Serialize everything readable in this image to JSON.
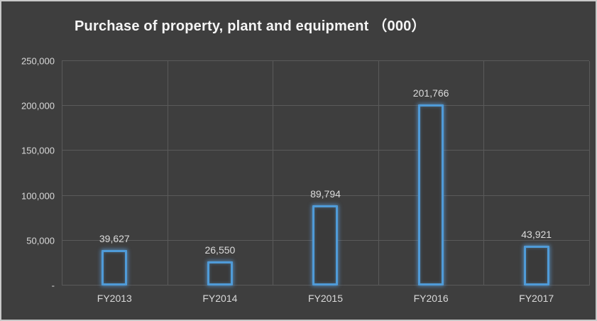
{
  "chart_data": {
    "type": "bar",
    "title": "Purchase of property, plant and equipment （000）",
    "categories": [
      "FY2013",
      "FY2014",
      "FY2015",
      "FY2016",
      "FY2017"
    ],
    "values": [
      39627,
      26550,
      89794,
      201766,
      43921
    ],
    "value_labels": [
      "39,627",
      "26,550",
      "89,794",
      "201,766",
      "43,921"
    ],
    "ylim": [
      0,
      250000
    ],
    "y_ticks": [
      {
        "value": 250000,
        "label": "250,000"
      },
      {
        "value": 200000,
        "label": "200,000"
      },
      {
        "value": 150000,
        "label": "150,000"
      },
      {
        "value": 100000,
        "label": "100,000"
      },
      {
        "value": 50000,
        "label": "50,000"
      },
      {
        "value": 0,
        "label": "-"
      }
    ],
    "grid": true,
    "legend": "none",
    "colors": {
      "background": "#3e3e3e",
      "bar_outline": "#4f9bd8",
      "gridline": "#5a5a5a",
      "text": "#d9d9d9",
      "title_text": "#f5f5f5"
    }
  }
}
